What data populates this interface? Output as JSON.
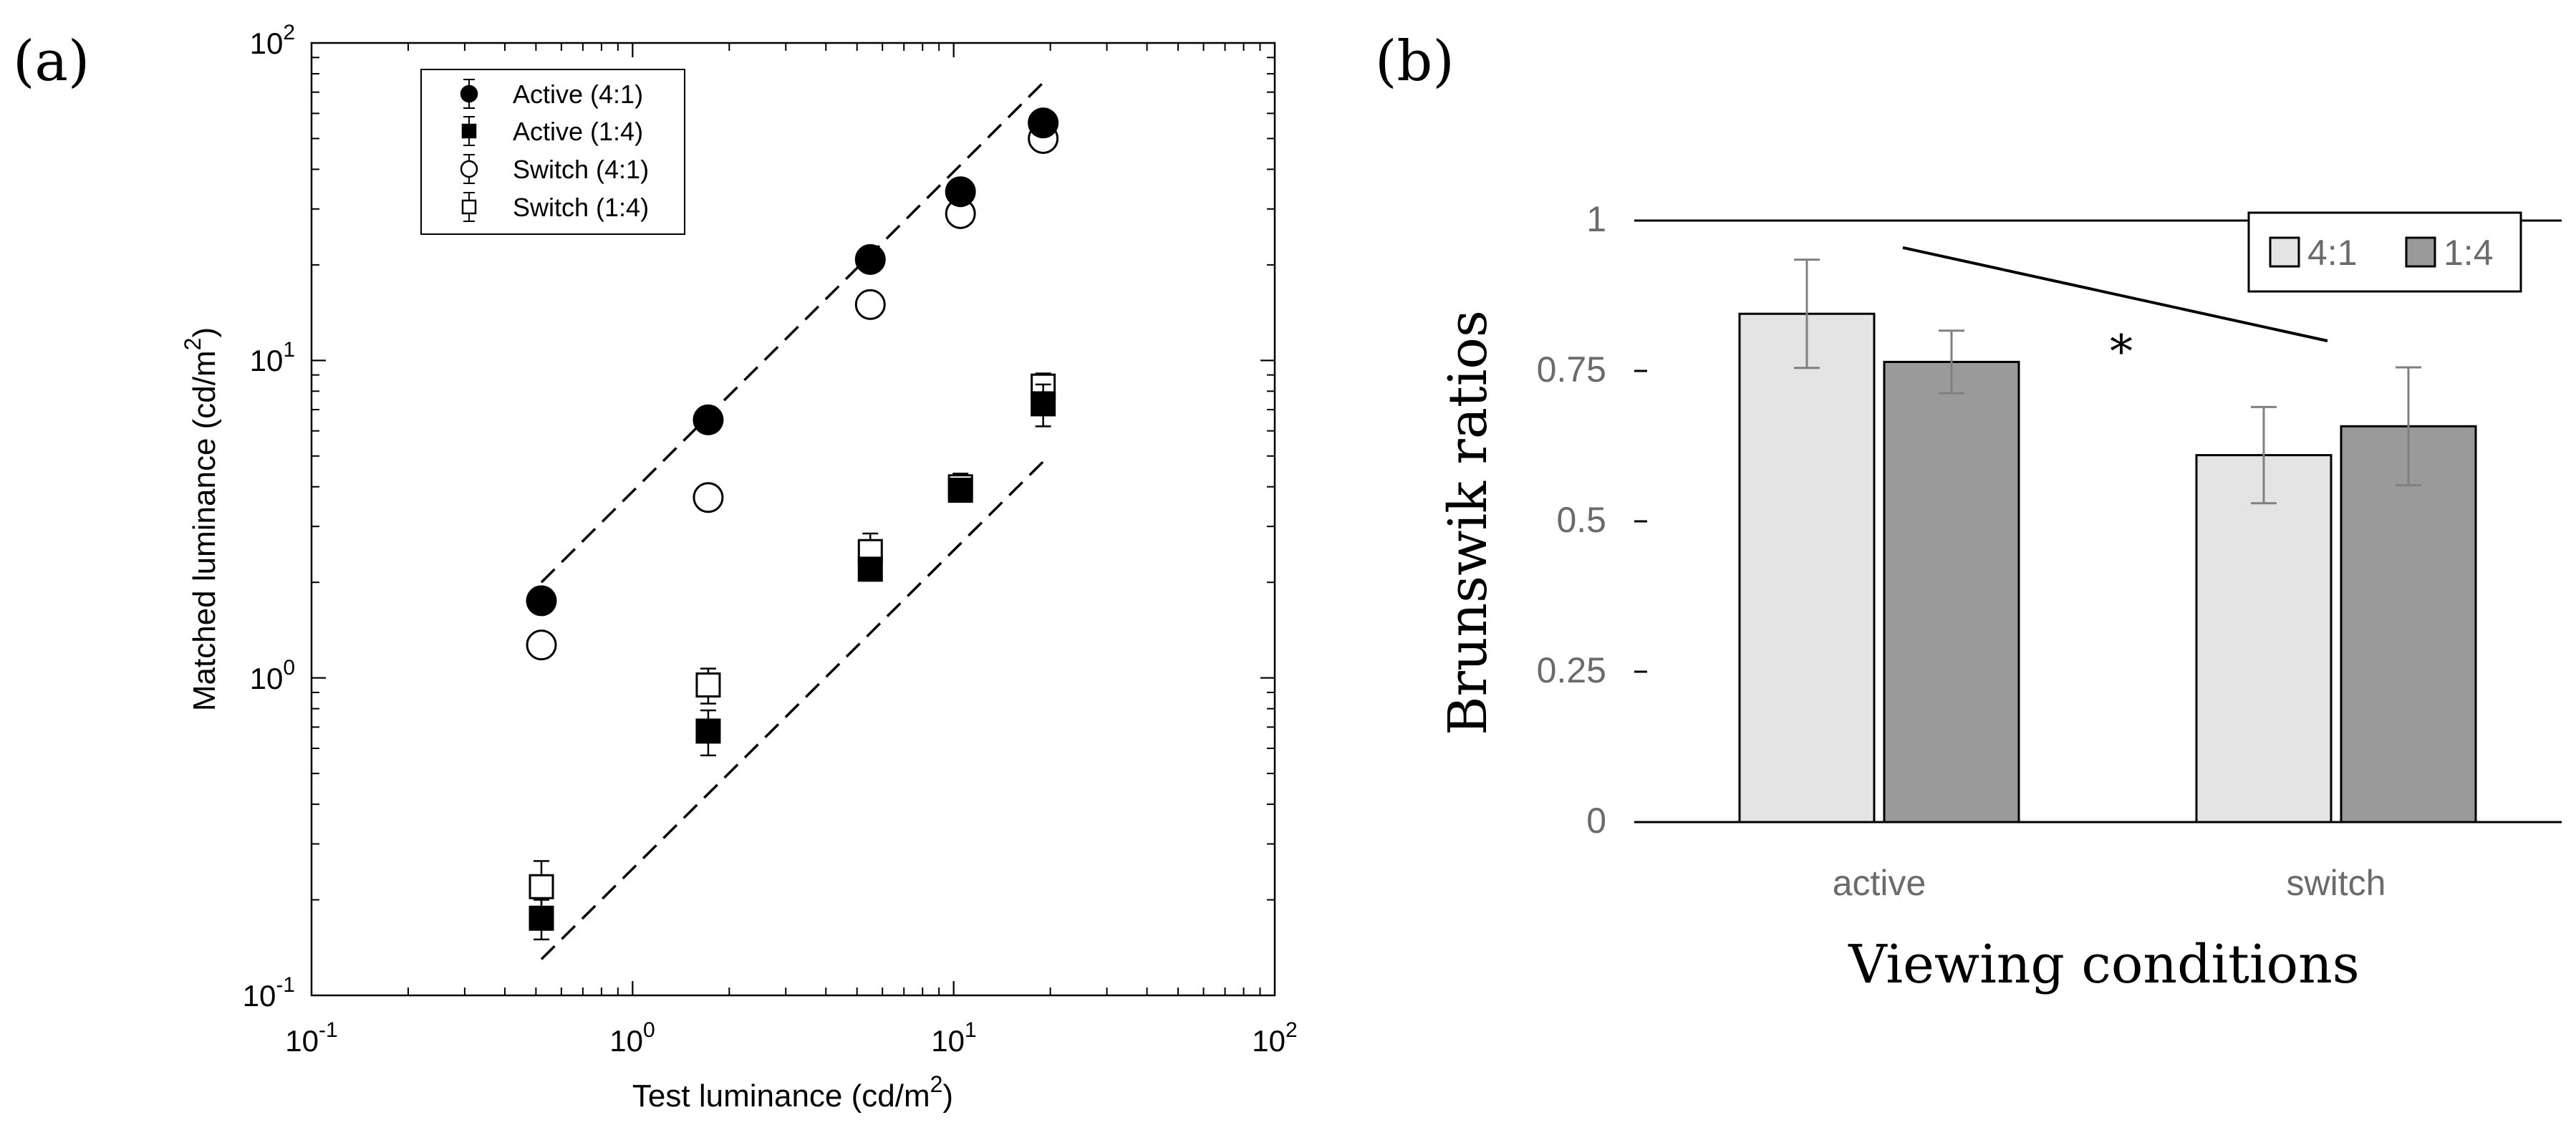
{
  "chart_data": [
    {
      "panel_label": "(a)",
      "type": "scatter",
      "xscale": "log",
      "yscale": "log",
      "xlim": [
        0.1,
        100
      ],
      "ylim": [
        0.1,
        100
      ],
      "xlabel": "Test luminance (cd/m",
      "xlabel_sup": "2",
      "xlabel_end": ")",
      "ylabel": "Matched luminance (cd/m",
      "ylabel_sup": "2",
      "ylabel_end": ")",
      "tick_base": "10",
      "xticks": [
        {
          "value": 0.1,
          "exp": "-1"
        },
        {
          "value": 1,
          "exp": "0"
        },
        {
          "value": 10,
          "exp": "1"
        },
        {
          "value": 100,
          "exp": "2"
        }
      ],
      "yticks": [
        {
          "value": 0.1,
          "exp": "-1"
        },
        {
          "value": 1,
          "exp": "0"
        },
        {
          "value": 10,
          "exp": "1"
        },
        {
          "value": 100,
          "exp": "2"
        }
      ],
      "legend_position": "top-left",
      "series": [
        {
          "name": "Active (4:1)",
          "marker": "circle",
          "fill": "#000000",
          "x": [
            0.52,
            1.72,
            5.5,
            10.5,
            19
          ],
          "y": [
            1.75,
            6.5,
            20.8,
            34,
            56
          ],
          "err": [
            0.08,
            0.3,
            1.0,
            2.0,
            3.0
          ]
        },
        {
          "name": "Active (1:4)",
          "marker": "square",
          "fill": "#000000",
          "x": [
            0.52,
            1.72,
            5.5,
            10.5,
            19
          ],
          "y": [
            0.175,
            0.68,
            2.2,
            3.9,
            7.3
          ],
          "err": [
            0.025,
            0.11,
            0.15,
            0.25,
            1.1
          ]
        },
        {
          "name": "Switch (4:1)",
          "marker": "circle",
          "fill": "#ffffff",
          "x": [
            0.52,
            1.72,
            5.5,
            10.5,
            19
          ],
          "y": [
            1.27,
            3.7,
            15,
            29,
            50
          ],
          "err": [
            0.06,
            0.2,
            0.8,
            1.5,
            2.5
          ]
        },
        {
          "name": "Switch (1:4)",
          "marker": "square",
          "fill": "#ffffff",
          "x": [
            0.52,
            1.72,
            5.5,
            10.5,
            19
          ],
          "y": [
            0.22,
            0.95,
            2.5,
            4.0,
            8.3
          ],
          "err": [
            0.045,
            0.12,
            0.35,
            0.4,
            0.8
          ]
        }
      ],
      "reference_lines": [
        {
          "name": "upper",
          "x": [
            0.52,
            19
          ],
          "y": [
            2.0,
            75
          ]
        },
        {
          "name": "lower",
          "x": [
            0.52,
            19
          ],
          "y": [
            0.13,
            4.8
          ]
        }
      ]
    },
    {
      "panel_label": "(b)",
      "type": "bar",
      "categories": [
        "active",
        "switch"
      ],
      "series": [
        {
          "name": "4:1",
          "color": "#e4e4e4",
          "values": [
            0.845,
            0.61
          ],
          "err": [
            0.09,
            0.08
          ]
        },
        {
          "name": "1:4",
          "color": "#9a9a9a",
          "values": [
            0.765,
            0.658
          ],
          "err": [
            0.052,
            0.098
          ]
        }
      ],
      "ylabel": "Brunswik ratios",
      "xlabel": "Viewing conditions",
      "ylim": [
        0,
        1
      ],
      "yticks": [
        "0",
        "0.25",
        "0.5",
        "0.75",
        "1"
      ],
      "ytick_values": [
        0,
        0.25,
        0.5,
        0.75,
        1
      ],
      "reference_value": 1,
      "significance": {
        "symbol": "*",
        "line_from": [
          0.55,
          0.955
        ],
        "line_to": [
          1.8,
          0.8
        ]
      },
      "legend_position": "top-right"
    }
  ]
}
